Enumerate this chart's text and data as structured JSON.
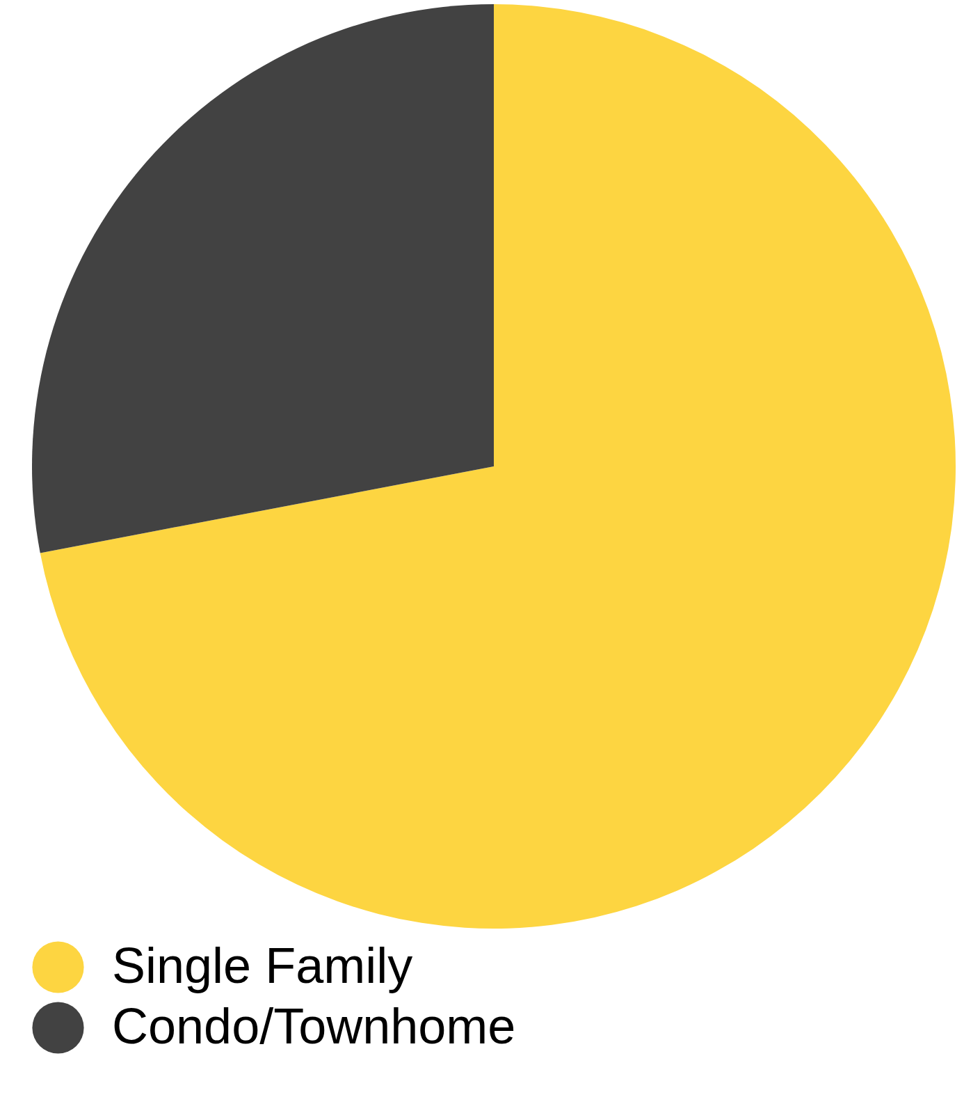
{
  "chart_data": {
    "type": "pie",
    "categories": [
      "Single Family",
      "Condo/Townhome"
    ],
    "values": [
      72,
      28
    ],
    "colors": [
      "#fdd541",
      "#424242"
    ],
    "legend": "bottom"
  }
}
